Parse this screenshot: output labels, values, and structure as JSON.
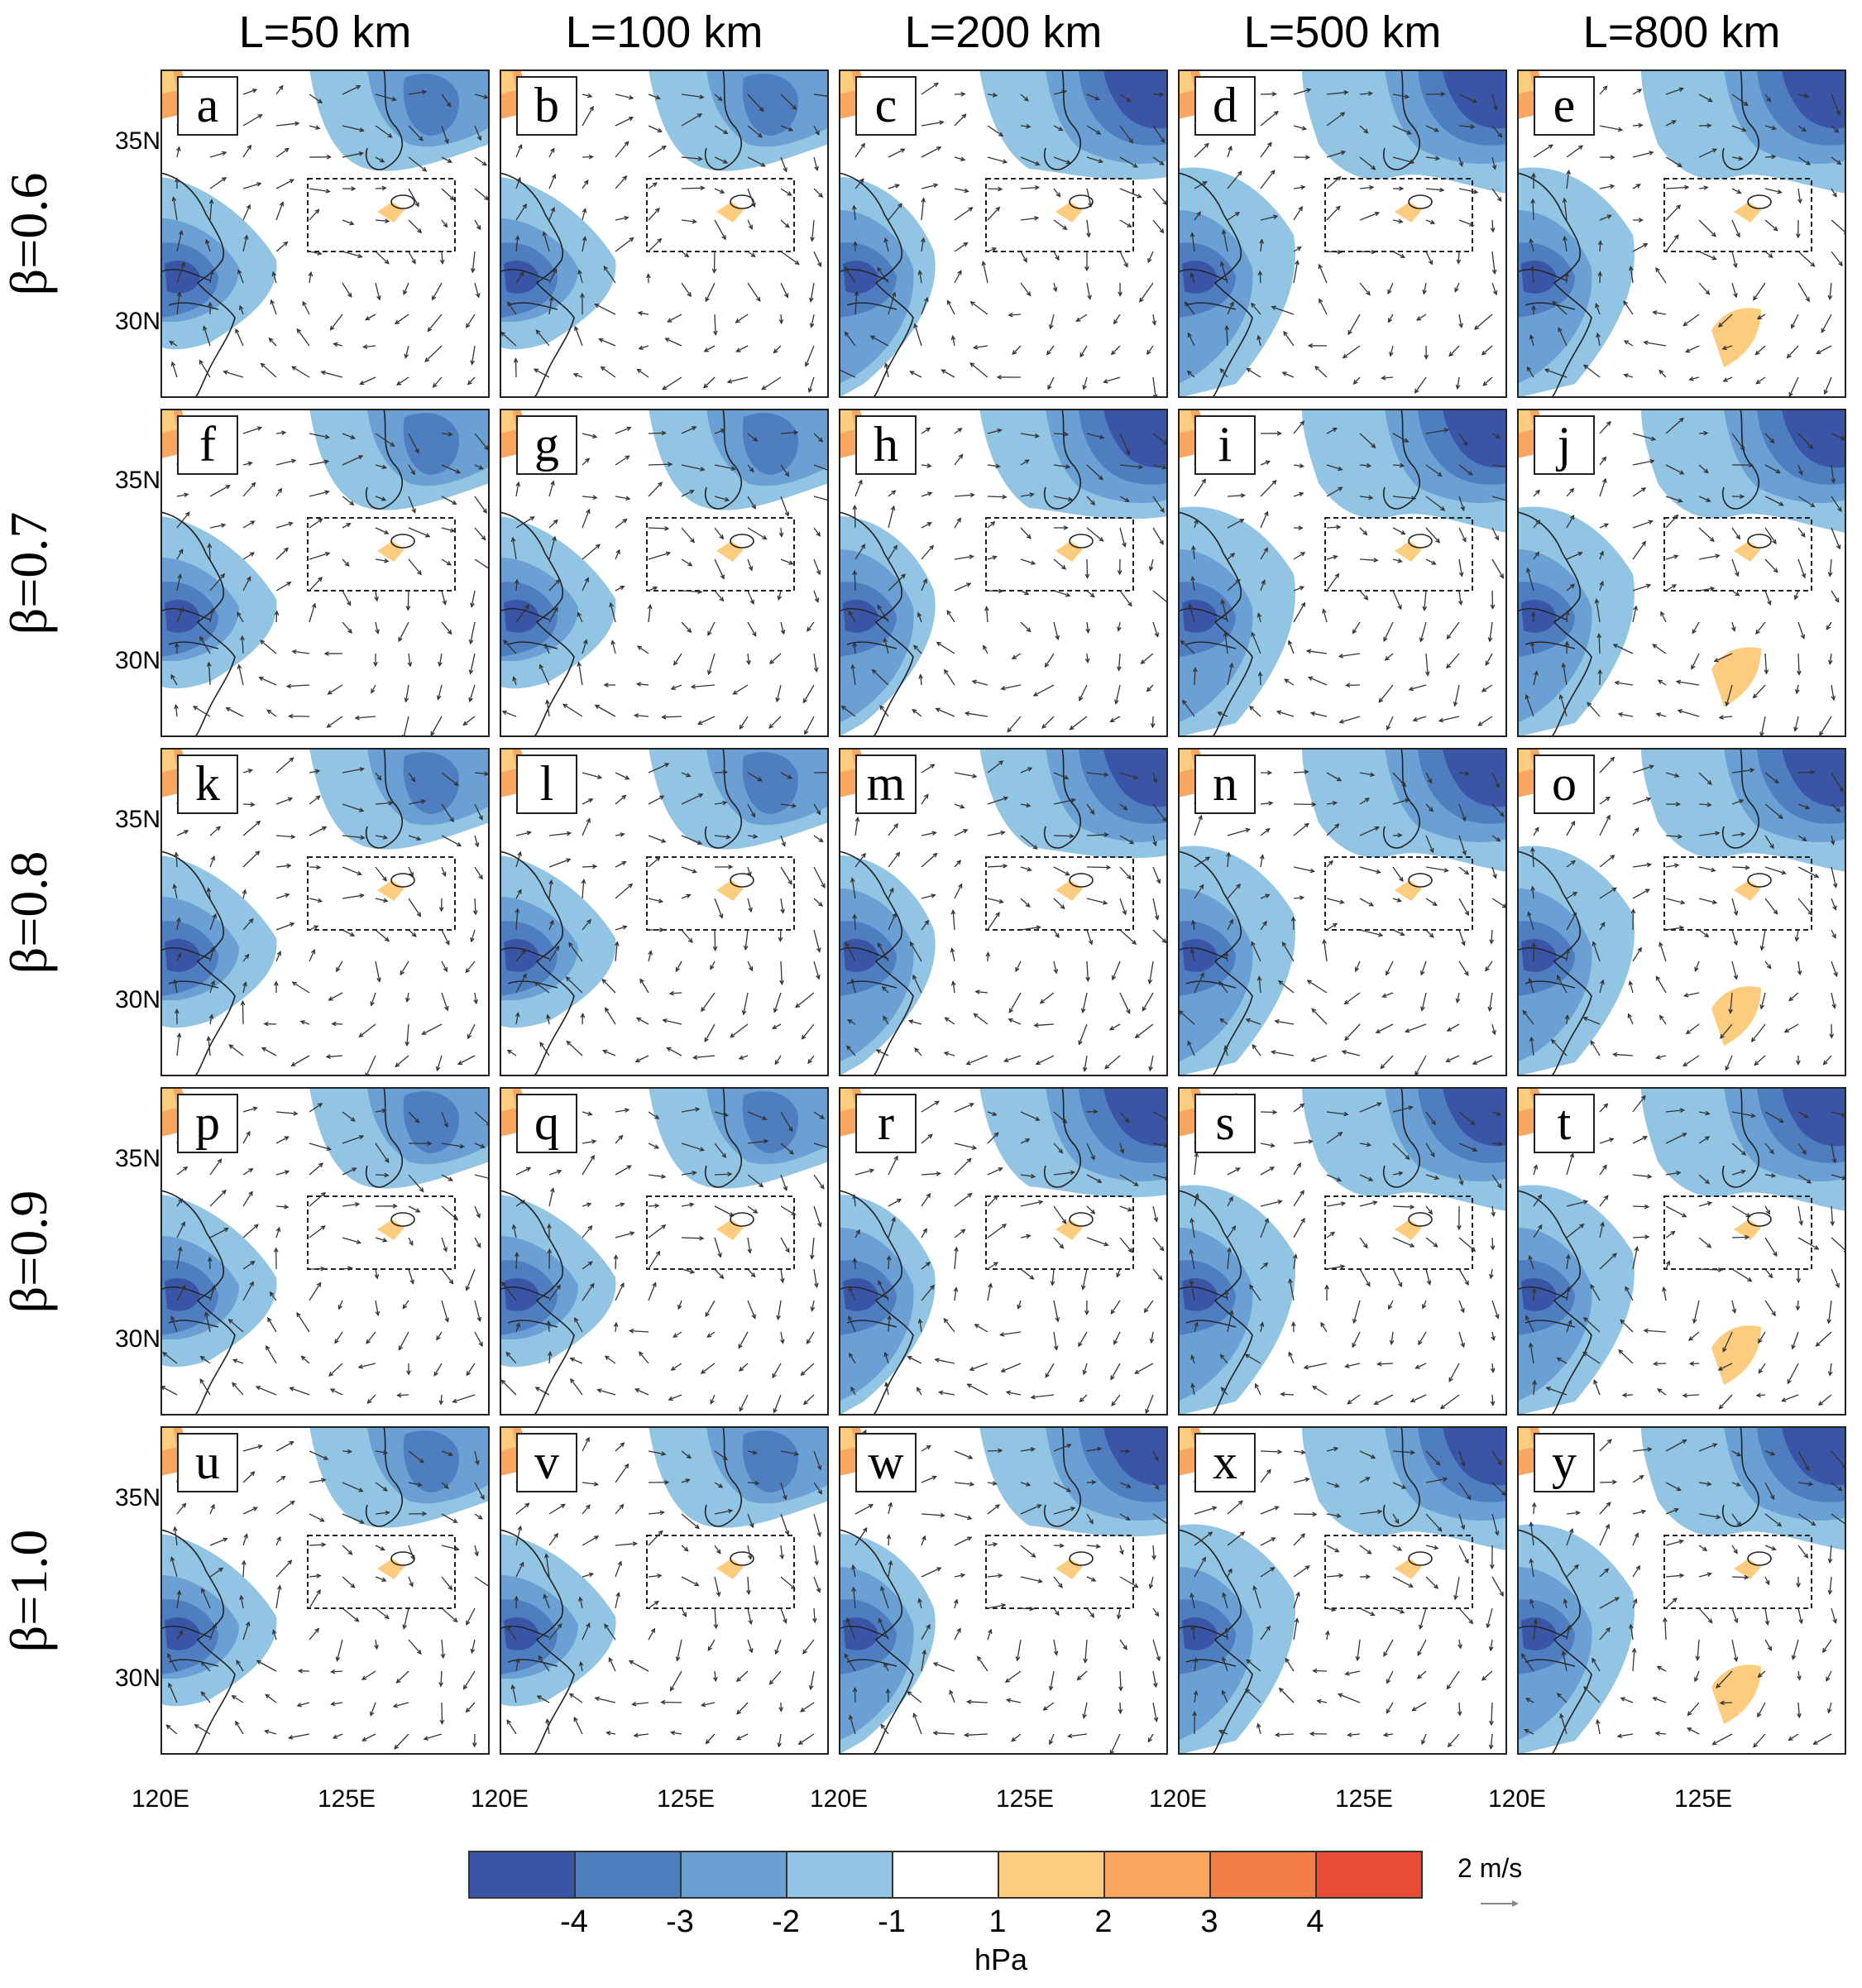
{
  "column_headers": [
    "L=50 km",
    "L=100 km",
    "L=200 km",
    "L=500 km",
    "L=800 km"
  ],
  "row_labels": [
    "β=0.6",
    "β=0.7",
    "β=0.8",
    "β=0.9",
    "β=1.0"
  ],
  "panel_letters": [
    [
      "a",
      "b",
      "c",
      "d",
      "e"
    ],
    [
      "f",
      "g",
      "h",
      "i",
      "j"
    ],
    [
      "k",
      "l",
      "m",
      "n",
      "o"
    ],
    [
      "p",
      "q",
      "r",
      "s",
      "t"
    ],
    [
      "u",
      "v",
      "w",
      "x",
      "y"
    ]
  ],
  "lat_labels": [
    "35N",
    "30N"
  ],
  "lon_labels": [
    "120E",
    "125E"
  ],
  "colorbar": {
    "unit": "hPa",
    "tick_labels": [
      "-4",
      "-3",
      "-2",
      "-1",
      "1",
      "2",
      "3",
      "4"
    ],
    "colors": [
      "#3a55a5",
      "#4f7ec0",
      "#6aa0d3",
      "#92c4e3",
      "#ffffff",
      "#fdcc7e",
      "#f9a660",
      "#f27e48",
      "#e64c36"
    ]
  },
  "reference_vector_label": "2 m/s",
  "colors": {
    "deep_blue": "#3a55a5",
    "mid_blue": "#4f7ec0",
    "blue": "#6aa0d3",
    "light_blue": "#92c4e3",
    "light_orange": "#fdcc7e",
    "orange": "#f9a660"
  }
}
